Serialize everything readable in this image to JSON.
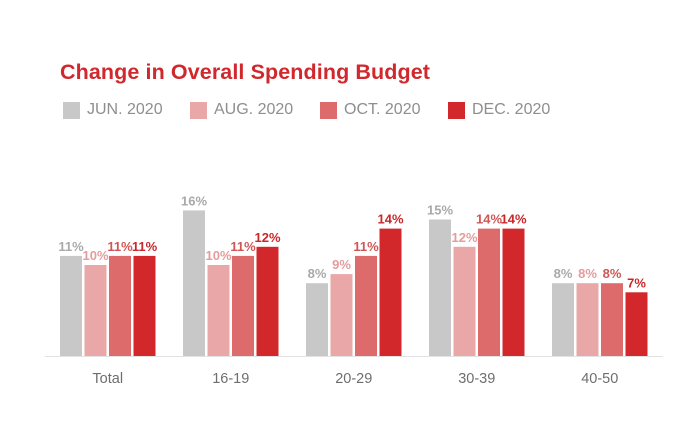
{
  "chart_data": {
    "type": "bar",
    "title": "Change in Overall Spending Budget",
    "categories": [
      "Total",
      "16-19",
      "20-29",
      "30-39",
      "40-50"
    ],
    "series": [
      {
        "name": "JUN. 2020",
        "color": "#c8c8c8",
        "label_color": "#a9a9a9",
        "values": [
          11,
          16,
          8,
          15,
          8
        ]
      },
      {
        "name": "AUG. 2020",
        "color": "#eaa7a7",
        "label_color": "#e49c9c",
        "values": [
          10,
          10,
          9,
          12,
          8
        ]
      },
      {
        "name": "OCT. 2020",
        "color": "#dd6b6b",
        "label_color": "#d05656",
        "values": [
          11,
          11,
          11,
          14,
          8
        ]
      },
      {
        "name": "DEC. 2020",
        "color": "#d2282b",
        "label_color": "#c9272a",
        "values": [
          11,
          12,
          14,
          14,
          7
        ]
      }
    ],
    "value_suffix": "%",
    "ylim": [
      0,
      16
    ],
    "xlabel": "",
    "ylabel": "",
    "legend_position": "top-left"
  }
}
